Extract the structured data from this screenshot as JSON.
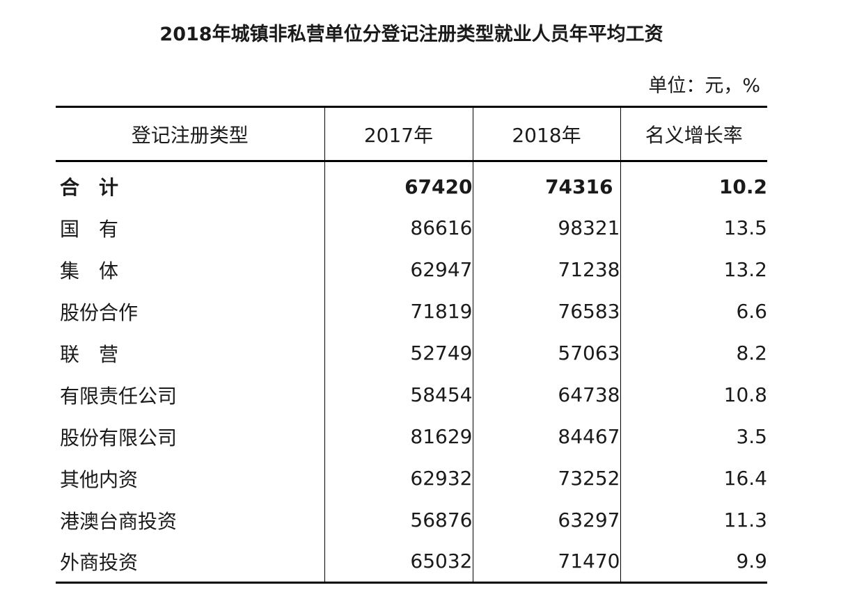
{
  "title": "2018年城镇非私营单位分登记注册类型就业人员年平均工资",
  "unit": "单位：元，%",
  "table": {
    "headers": [
      "登记注册类型",
      "2017年",
      "2018年",
      "名义增长率"
    ],
    "rows": [
      {
        "type": "合　计",
        "y2017": "67420",
        "y2018": "74316",
        "growth": "10.2"
      },
      {
        "type": "国　有",
        "y2017": "86616",
        "y2018": "98321",
        "growth": "13.5"
      },
      {
        "type": "集　体",
        "y2017": "62947",
        "y2018": "71238",
        "growth": "13.2"
      },
      {
        "type": "股份合作",
        "y2017": "71819",
        "y2018": "76583",
        "growth": "6.6"
      },
      {
        "type": "联　营",
        "y2017": "52749",
        "y2018": "57063",
        "growth": "8.2"
      },
      {
        "type": "有限责任公司",
        "y2017": "58454",
        "y2018": "64738",
        "growth": "10.8"
      },
      {
        "type": "股份有限公司",
        "y2017": "81629",
        "y2018": "84467",
        "growth": "3.5"
      },
      {
        "type": "其他内资",
        "y2017": "62932",
        "y2018": "73252",
        "growth": "16.4"
      },
      {
        "type": "港澳台商投资",
        "y2017": "56876",
        "y2018": "63297",
        "growth": "11.3"
      },
      {
        "type": "外商投资",
        "y2017": "65032",
        "y2018": "71470",
        "growth": "9.9"
      }
    ]
  }
}
